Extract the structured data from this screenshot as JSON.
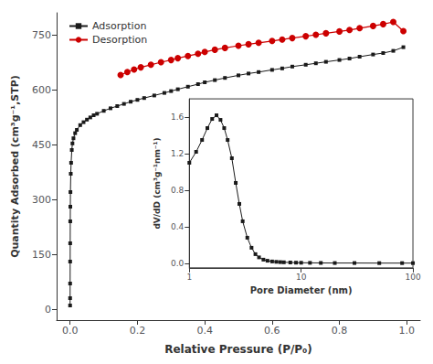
{
  "chart_data": [
    {
      "type": "line",
      "xlabel": "Relative Pressure (P/P₀)",
      "ylabel": "Quantity Adsorbed (cm³g⁻¹,STP)",
      "xlim": [
        -0.04,
        1.04
      ],
      "xticks": [
        {
          "value": 0.0,
          "label": "0.0"
        },
        0.2,
        0.4,
        0.6,
        0.8,
        {
          "value": 1.0,
          "label": "1.0"
        }
      ],
      "ylim": [
        -30,
        810
      ],
      "yticks": [
        0,
        150,
        300,
        450,
        600,
        750
      ],
      "grid": false,
      "legend": "upper left",
      "series": [
        {
          "name": "Adsorption",
          "color": "#1a1a1a",
          "marker": "square",
          "x": [
            2e-05,
            5e-05,
            0.0001,
            0.0002,
            0.0003,
            0.0005,
            0.0007,
            0.001,
            0.002,
            0.003,
            0.005,
            0.007,
            0.01,
            0.015,
            0.02,
            0.03,
            0.04,
            0.05,
            0.06,
            0.07,
            0.08,
            0.1,
            0.12,
            0.14,
            0.16,
            0.18,
            0.2,
            0.22,
            0.25,
            0.28,
            0.3,
            0.32,
            0.35,
            0.38,
            0.4,
            0.43,
            0.46,
            0.5,
            0.53,
            0.56,
            0.6,
            0.63,
            0.66,
            0.7,
            0.73,
            0.76,
            0.8,
            0.83,
            0.86,
            0.9,
            0.93,
            0.96,
            0.99
          ],
          "values": [
            10,
            30,
            70,
            130,
            180,
            240,
            280,
            320,
            370,
            400,
            435,
            453,
            467,
            481,
            490,
            503,
            511,
            518,
            524,
            530,
            534,
            542,
            549,
            555,
            561,
            567,
            572,
            577,
            584,
            591,
            596,
            601,
            608,
            615,
            620,
            626,
            632,
            639,
            644,
            648,
            654,
            658,
            663,
            668,
            672,
            676,
            681,
            685,
            690,
            696,
            700,
            706,
            716
          ]
        },
        {
          "name": "Desorption",
          "color": "#cc0000",
          "marker": "circle",
          "x": [
            0.15,
            0.17,
            0.19,
            0.21,
            0.24,
            0.27,
            0.3,
            0.32,
            0.35,
            0.38,
            0.4,
            0.43,
            0.46,
            0.5,
            0.53,
            0.56,
            0.6,
            0.63,
            0.66,
            0.7,
            0.73,
            0.76,
            0.8,
            0.83,
            0.86,
            0.9,
            0.93,
            0.96,
            0.99
          ],
          "values": [
            640,
            648,
            655,
            661,
            668,
            675,
            681,
            686,
            692,
            698,
            703,
            709,
            714,
            720,
            724,
            728,
            733,
            737,
            741,
            746,
            750,
            754,
            759,
            763,
            768,
            774,
            779,
            785,
            760
          ]
        }
      ]
    },
    {
      "type": "line",
      "xlabel": "Pore Diameter (nm)",
      "ylabel": "dV/dD (cm³g⁻¹nm⁻¹)",
      "log": "x",
      "xlim": [
        1,
        100
      ],
      "xticks": [
        1,
        10,
        100
      ],
      "ylim": [
        -0.05,
        1.8
      ],
      "yticks": [
        {
          "value": 0.0,
          "label": "0.0"
        },
        0.4,
        0.8,
        1.2,
        1.6
      ],
      "grid": false,
      "color": "#1a1a1a",
      "marker": "square",
      "x": [
        1.0,
        1.15,
        1.3,
        1.45,
        1.6,
        1.75,
        1.9,
        2.05,
        2.2,
        2.4,
        2.6,
        2.8,
        3.0,
        3.3,
        3.6,
        3.9,
        4.2,
        4.6,
        5.0,
        5.5,
        6.0,
        6.5,
        7.0,
        8.0,
        9.0,
        10.0,
        12.0,
        15.0,
        20.0,
        30.0,
        50.0,
        80.0,
        100.0
      ],
      "values": [
        1.1,
        1.22,
        1.35,
        1.48,
        1.58,
        1.62,
        1.57,
        1.48,
        1.35,
        1.15,
        0.88,
        0.65,
        0.46,
        0.28,
        0.17,
        0.1,
        0.065,
        0.04,
        0.028,
        0.02,
        0.016,
        0.013,
        0.011,
        0.009,
        0.007,
        0.006,
        0.005,
        0.004,
        0.003,
        0.003,
        0.002,
        0.002,
        0.002
      ]
    }
  ]
}
